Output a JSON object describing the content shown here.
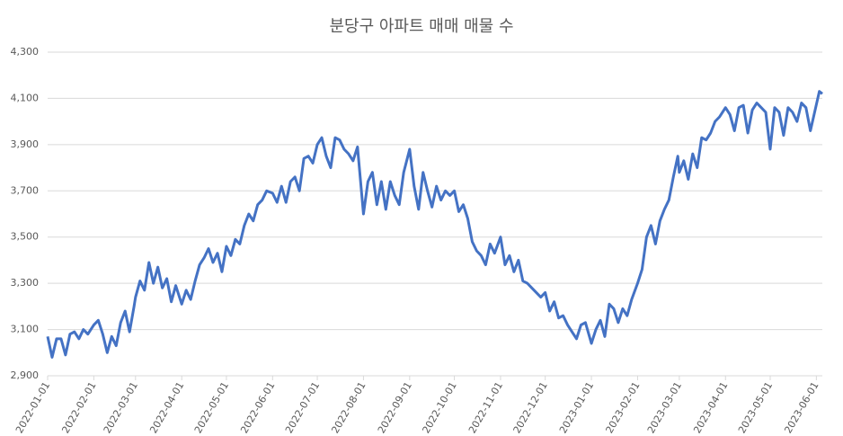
{
  "chart_data": {
    "type": "line",
    "title": "분당구 아파트 매매 매물 수",
    "x": [
      "2022-01-01",
      "2022-01-04",
      "2022-01-07",
      "2022-01-10",
      "2022-01-13",
      "2022-01-16",
      "2022-01-19",
      "2022-01-22",
      "2022-01-25",
      "2022-01-28",
      "2022-02-01",
      "2022-02-04",
      "2022-02-07",
      "2022-02-10",
      "2022-02-13",
      "2022-02-16",
      "2022-02-19",
      "2022-02-22",
      "2022-02-25",
      "2022-02-28",
      "2022-03-01",
      "2022-03-04",
      "2022-03-07",
      "2022-03-10",
      "2022-03-13",
      "2022-03-16",
      "2022-03-19",
      "2022-03-22",
      "2022-03-25",
      "2022-03-28",
      "2022-04-01",
      "2022-04-04",
      "2022-04-07",
      "2022-04-10",
      "2022-04-13",
      "2022-04-16",
      "2022-04-19",
      "2022-04-22",
      "2022-04-25",
      "2022-04-28",
      "2022-05-01",
      "2022-05-04",
      "2022-05-07",
      "2022-05-10",
      "2022-05-13",
      "2022-05-16",
      "2022-05-19",
      "2022-05-22",
      "2022-05-25",
      "2022-05-28",
      "2022-06-01",
      "2022-06-04",
      "2022-06-07",
      "2022-06-10",
      "2022-06-13",
      "2022-06-16",
      "2022-06-19",
      "2022-06-22",
      "2022-06-25",
      "2022-06-28",
      "2022-07-01",
      "2022-07-04",
      "2022-07-07",
      "2022-07-10",
      "2022-07-13",
      "2022-07-16",
      "2022-07-19",
      "2022-07-22",
      "2022-07-25",
      "2022-07-28",
      "2022-08-01",
      "2022-08-04",
      "2022-08-07",
      "2022-08-10",
      "2022-08-13",
      "2022-08-16",
      "2022-08-19",
      "2022-08-22",
      "2022-08-25",
      "2022-08-28",
      "2022-09-01",
      "2022-09-04",
      "2022-09-07",
      "2022-09-10",
      "2022-09-13",
      "2022-09-16",
      "2022-09-19",
      "2022-09-22",
      "2022-09-25",
      "2022-09-28",
      "2022-10-01",
      "2022-10-04",
      "2022-10-07",
      "2022-10-10",
      "2022-10-13",
      "2022-10-16",
      "2022-10-19",
      "2022-10-22",
      "2022-10-25",
      "2022-10-28",
      "2022-11-01",
      "2022-11-04",
      "2022-11-07",
      "2022-11-10",
      "2022-11-13",
      "2022-11-16",
      "2022-11-19",
      "2022-11-22",
      "2022-11-25",
      "2022-11-28",
      "2022-12-01",
      "2022-12-04",
      "2022-12-07",
      "2022-12-10",
      "2022-12-13",
      "2022-12-16",
      "2022-12-19",
      "2022-12-22",
      "2022-12-25",
      "2022-12-28",
      "2023-01-01",
      "2023-01-04",
      "2023-01-07",
      "2023-01-10",
      "2023-01-13",
      "2023-01-16",
      "2023-01-19",
      "2023-01-22",
      "2023-01-25",
      "2023-01-28",
      "2023-02-01",
      "2023-02-04",
      "2023-02-07",
      "2023-02-10",
      "2023-02-13",
      "2023-02-16",
      "2023-02-19",
      "2023-02-22",
      "2023-02-25",
      "2023-02-28",
      "2023-03-01",
      "2023-03-04",
      "2023-03-07",
      "2023-03-10",
      "2023-03-13",
      "2023-03-16",
      "2023-03-19",
      "2023-03-22",
      "2023-03-25",
      "2023-03-28",
      "2023-04-01",
      "2023-04-04",
      "2023-04-07",
      "2023-04-10",
      "2023-04-13",
      "2023-04-16",
      "2023-04-19",
      "2023-04-22",
      "2023-04-25",
      "2023-04-28",
      "2023-05-01",
      "2023-05-04",
      "2023-05-07",
      "2023-05-10",
      "2023-05-13",
      "2023-05-16",
      "2023-05-19",
      "2023-05-22",
      "2023-05-25",
      "2023-05-28",
      "2023-06-03",
      "2023-06-05"
    ],
    "series": [
      {
        "color": "#4472c4",
        "values": [
          3070,
          2980,
          3060,
          3060,
          2990,
          3080,
          3090,
          3060,
          3100,
          3080,
          3120,
          3140,
          3080,
          3000,
          3070,
          3030,
          3130,
          3180,
          3090,
          3200,
          3240,
          3310,
          3270,
          3390,
          3300,
          3370,
          3280,
          3320,
          3220,
          3290,
          3210,
          3270,
          3230,
          3310,
          3380,
          3410,
          3450,
          3390,
          3430,
          3350,
          3460,
          3420,
          3490,
          3470,
          3550,
          3600,
          3570,
          3640,
          3660,
          3700,
          3690,
          3650,
          3720,
          3650,
          3740,
          3760,
          3700,
          3840,
          3850,
          3820,
          3900,
          3930,
          3850,
          3800,
          3930,
          3920,
          3880,
          3860,
          3830,
          3890,
          3600,
          3740,
          3780,
          3640,
          3740,
          3620,
          3740,
          3680,
          3640,
          3780,
          3880,
          3720,
          3620,
          3780,
          3700,
          3630,
          3720,
          3660,
          3700,
          3680,
          3700,
          3610,
          3640,
          3580,
          3480,
          3440,
          3420,
          3380,
          3470,
          3430,
          3500,
          3380,
          3420,
          3350,
          3400,
          3310,
          3300,
          3280,
          3260,
          3240,
          3260,
          3180,
          3220,
          3150,
          3160,
          3120,
          3090,
          3060,
          3120,
          3130,
          3040,
          3100,
          3140,
          3070,
          3210,
          3190,
          3130,
          3190,
          3160,
          3230,
          3300,
          3360,
          3500,
          3550,
          3470,
          3570,
          3620,
          3660,
          3760,
          3850,
          3780,
          3830,
          3750,
          3860,
          3800,
          3930,
          3920,
          3950,
          4000,
          4020,
          4060,
          4030,
          3960,
          4060,
          4070,
          3950,
          4050,
          4080,
          4060,
          4040,
          3880,
          4060,
          4040,
          3940,
          4060,
          4040,
          4000,
          4080,
          4060,
          3960,
          4130,
          4120
        ]
      }
    ],
    "xlim": [
      "2022-01-01",
      "2023-06-05"
    ],
    "xticks": [
      "2022-01-01",
      "2022-02-01",
      "2022-03-01",
      "2022-04-01",
      "2022-05-01",
      "2022-06-01",
      "2022-07-01",
      "2022-08-01",
      "2022-09-01",
      "2022-10-01",
      "2022-11-01",
      "2022-12-01",
      "2023-01-01",
      "2023-02-01",
      "2023-03-01",
      "2023-04-01",
      "2023-05-01",
      "2023-06-01"
    ],
    "ylim": [
      2900,
      4300
    ],
    "yticks": [
      {
        "value": 2900,
        "label": "2,900"
      },
      {
        "value": 3100,
        "label": "3,100"
      },
      {
        "value": 3300,
        "label": "3,300"
      },
      {
        "value": 3500,
        "label": "3,500"
      },
      {
        "value": 3700,
        "label": "3,700"
      },
      {
        "value": 3900,
        "label": "3,900"
      },
      {
        "value": 4100,
        "label": "4,100"
      },
      {
        "value": 4300,
        "label": "4,300"
      }
    ],
    "grid": true
  }
}
